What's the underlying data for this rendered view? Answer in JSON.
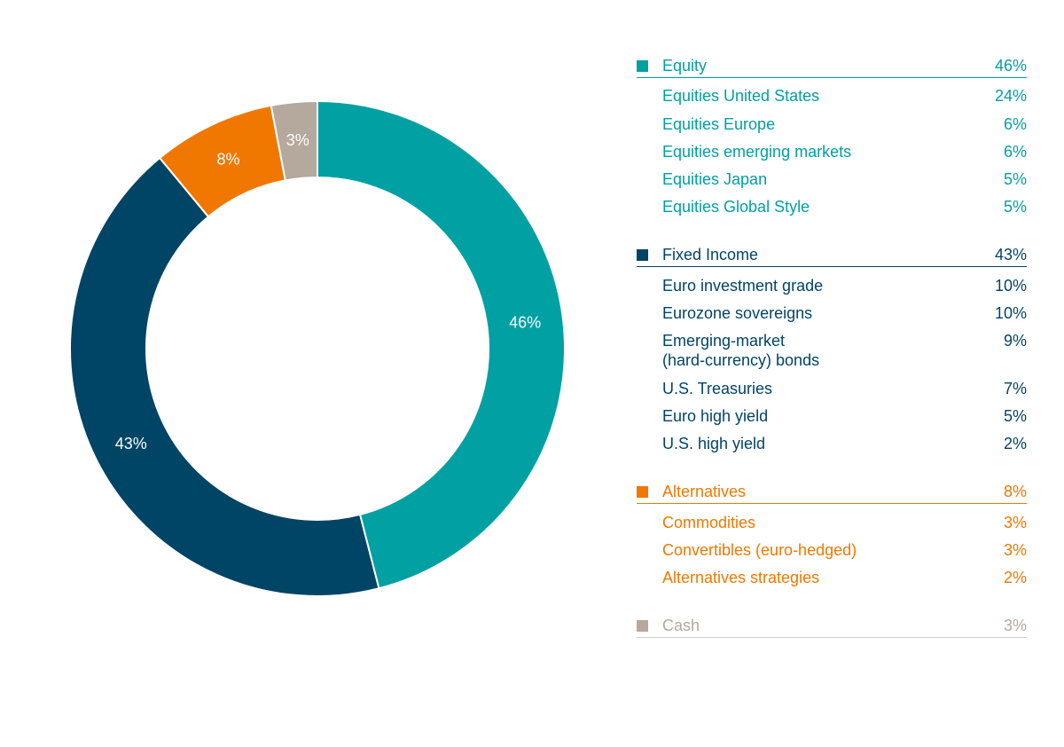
{
  "chart_data": {
    "type": "pie",
    "donut": true,
    "slices": [
      {
        "label": "Equity",
        "value": 46,
        "value_label": "46%",
        "color": "#00a0a3"
      },
      {
        "label": "Fixed Income",
        "value": 43,
        "value_label": "43%",
        "color": "#004466"
      },
      {
        "label": "Alternatives",
        "value": 8,
        "value_label": "8%",
        "color": "#f07800"
      },
      {
        "label": "Cash",
        "value": 3,
        "value_label": "3%",
        "color": "#b5a89c"
      }
    ],
    "legend": {
      "placement": "right",
      "groups": [
        {
          "label": "Equity",
          "value": "46%",
          "color": "#00a0a3",
          "items": [
            {
              "label": "Equities United States",
              "value": "24%"
            },
            {
              "label": "Equities Europe",
              "value": "6%"
            },
            {
              "label": "Equities emerging markets",
              "value": "6%"
            },
            {
              "label": "Equities Japan",
              "value": "5%"
            },
            {
              "label": "Equities Global Style",
              "value": "5%"
            }
          ]
        },
        {
          "label": "Fixed Income",
          "value": "43%",
          "color": "#004466",
          "items": [
            {
              "label": "Euro investment grade",
              "value": "10%"
            },
            {
              "label": "Eurozone sovereigns",
              "value": "10%"
            },
            {
              "label": "Emerging-market\n(hard-currency) bonds",
              "value": "9%"
            },
            {
              "label": "U.S. Treasuries",
              "value": "7%"
            },
            {
              "label": "Euro high yield",
              "value": "5%"
            },
            {
              "label": "U.S. high yield",
              "value": "2%"
            }
          ]
        },
        {
          "label": "Alternatives",
          "value": "8%",
          "color": "#f07800",
          "items": [
            {
              "label": "Commodities",
              "value": "3%"
            },
            {
              "label": "Convertibles (euro-hedged)",
              "value": "3%"
            },
            {
              "label": "Alternatives strategies",
              "value": "2%"
            }
          ]
        },
        {
          "label": "Cash",
          "value": "3%",
          "color": "#b5a89c",
          "items": []
        }
      ]
    }
  }
}
